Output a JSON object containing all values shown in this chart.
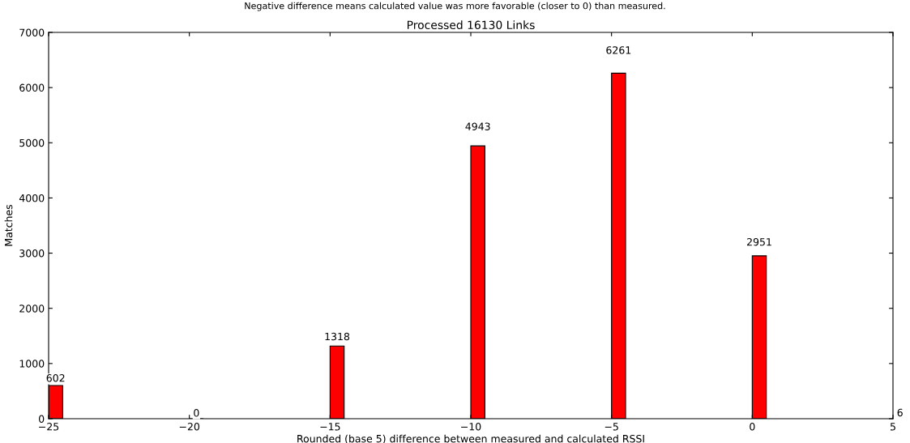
{
  "chart_data": {
    "type": "bar",
    "title": "Processed 16130 Links",
    "subtitle": "Negative difference means calculated value was more favorable (closer to 0) than measured.",
    "xlabel": "Rounded (base 5) difference between measured and calculated RSSI",
    "ylabel": "Matches",
    "x": [
      -25,
      -20,
      -15,
      -10,
      -5,
      0,
      5
    ],
    "values": [
      602,
      0,
      1318,
      4943,
      6261,
      2951,
      6
    ],
    "color": "#ff0000",
    "xlim": [
      -25,
      5
    ],
    "xticks": [
      -25,
      -20,
      -15,
      -10,
      -5,
      0,
      5
    ],
    "ylim": [
      0,
      7000
    ],
    "yticks": [
      0,
      1000,
      2000,
      3000,
      4000,
      5000,
      6000,
      7000
    ],
    "data_labels": true,
    "grid": false,
    "legend": false
  }
}
